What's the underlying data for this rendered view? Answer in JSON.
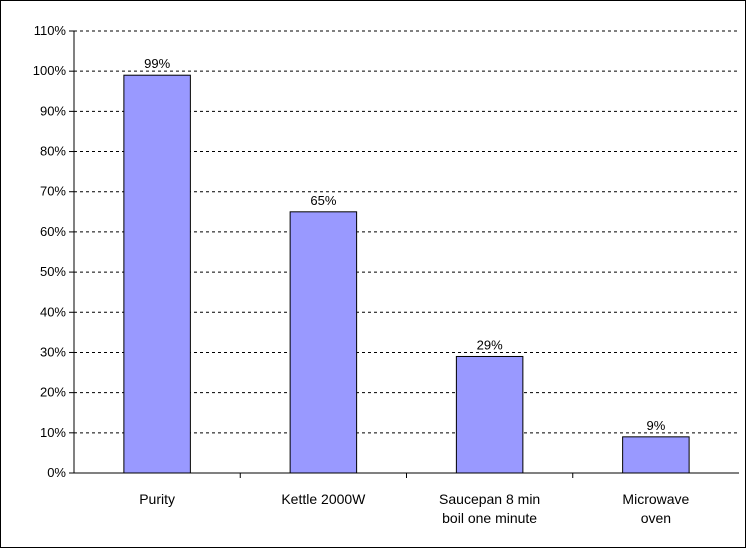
{
  "chart_data": {
    "type": "bar",
    "categories": [
      [
        "Purity"
      ],
      [
        "Kettle 2000W"
      ],
      [
        "Saucepan 8 min",
        "boil one minute"
      ],
      [
        "Microwave",
        "oven"
      ]
    ],
    "values": [
      99,
      65,
      29,
      9
    ],
    "data_labels": [
      "99%",
      "65%",
      "29%",
      "9%"
    ],
    "ylim": [
      0,
      110
    ],
    "yticks": [
      0,
      10,
      20,
      30,
      40,
      50,
      60,
      70,
      80,
      90,
      100,
      110
    ],
    "ytick_labels": [
      "0%",
      "10%",
      "20%",
      "30%",
      "40%",
      "50%",
      "60%",
      "70%",
      "80%",
      "90%",
      "100%",
      "110%"
    ],
    "grid": true,
    "bar_color": "#9999ff",
    "bar_edge_color": "#000000"
  }
}
